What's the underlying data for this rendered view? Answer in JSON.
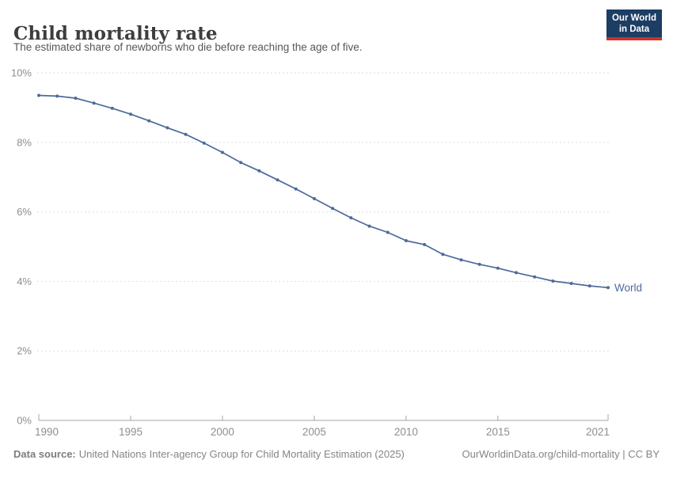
{
  "header": {
    "title": "Child mortality rate",
    "subtitle": "The estimated share of newborns who die before reaching the age of five.",
    "logo": {
      "line1": "Our World",
      "line2": "in Data"
    }
  },
  "footer": {
    "datasource_label": "Data source:",
    "datasource_text": "United Nations Inter-agency Group for Child Mortality Estimation (2025)",
    "link_text": "OurWorldinData.org/child-mortality | CC BY"
  },
  "colors": {
    "line": "#4c6a9c",
    "series_label": "#4c6a9c",
    "gridline": "#dedede",
    "axis": "#a5a5a5",
    "tick_label": "#8e8e8e",
    "logo_bg": "#1d3d63",
    "logo_red": "#cf3129"
  },
  "chart_data": {
    "type": "line",
    "title": "Child mortality rate",
    "xlabel": "",
    "ylabel": "",
    "xlim": [
      1990,
      2021
    ],
    "ylim": [
      0,
      10
    ],
    "xticks": [
      1990,
      1995,
      2000,
      2005,
      2010,
      2015,
      2021
    ],
    "yticks": [
      0,
      2,
      4,
      6,
      8,
      10
    ],
    "ytick_suffix": "%",
    "grid": "horizontal-dashed",
    "legend": "end-of-line-label",
    "x": [
      1990,
      1991,
      1992,
      1993,
      1994,
      1995,
      1996,
      1997,
      1998,
      1999,
      2000,
      2001,
      2002,
      2003,
      2004,
      2005,
      2006,
      2007,
      2008,
      2009,
      2010,
      2011,
      2012,
      2013,
      2014,
      2015,
      2016,
      2017,
      2018,
      2019,
      2020,
      2021
    ],
    "series": [
      {
        "name": "World",
        "values": [
          9.35,
          9.33,
          9.27,
          9.13,
          8.98,
          8.81,
          8.62,
          8.42,
          8.23,
          7.98,
          7.71,
          7.42,
          7.18,
          6.92,
          6.66,
          6.38,
          6.1,
          5.83,
          5.59,
          5.41,
          5.17,
          5.06,
          4.78,
          4.62,
          4.49,
          4.38,
          4.25,
          4.13,
          4.01,
          3.94,
          3.87,
          3.82
        ]
      }
    ]
  }
}
